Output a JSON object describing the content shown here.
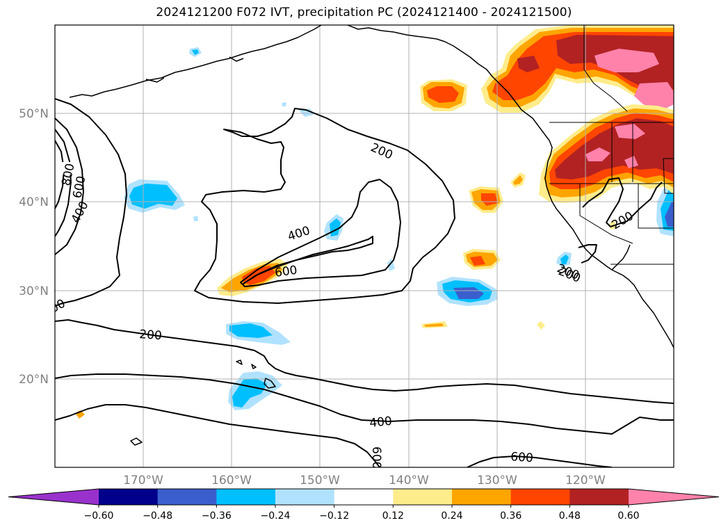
{
  "title": "2024121200 F072 IVT, precipitation PC (2024121400 - 2024121500)",
  "map": {
    "lon_range": [
      -180,
      -110
    ],
    "lat_range": [
      10,
      60
    ],
    "lat_labels": [
      "20°N",
      "30°N",
      "40°N",
      "50°N"
    ],
    "lon_labels": [
      "170°W",
      "160°W",
      "150°W",
      "140°W",
      "130°W",
      "120°W"
    ],
    "gridlines": true,
    "contour_labels": [
      "800",
      "600",
      "400",
      "200",
      "400",
      "600",
      "200",
      "200",
      "400",
      "600",
      "600",
      "200",
      "200",
      "00"
    ]
  },
  "colorbar": {
    "ticks": [
      "−0.60",
      "−0.48",
      "−0.36",
      "−0.24",
      "−0.12",
      "0.12",
      "0.24",
      "0.36",
      "0.48",
      "0.60"
    ],
    "colors": [
      "#9932cc",
      "#00008b",
      "#3a5fcd",
      "#00bfff",
      "#b0e2ff",
      "#ffffff",
      "#ffec8b",
      "#ffa500",
      "#ff4500",
      "#b22222",
      "#ff82ab"
    ],
    "extend": "both"
  }
}
